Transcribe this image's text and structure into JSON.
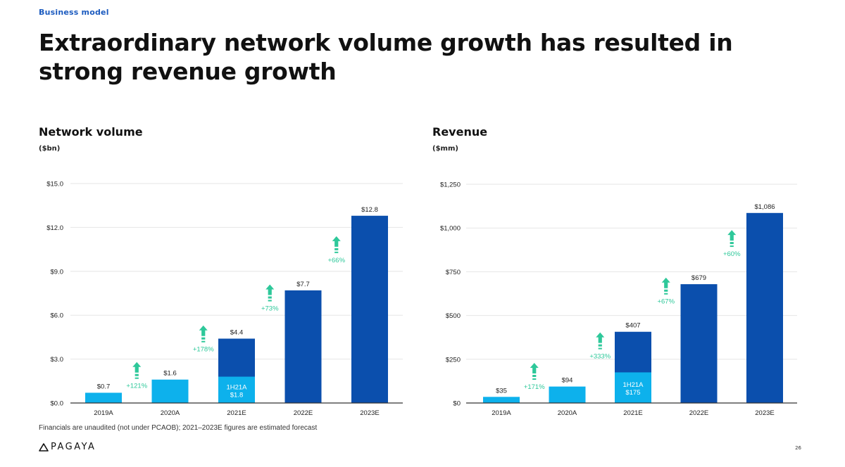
{
  "section_label": "Business model",
  "title": "Extraordinary network volume growth has resulted in strong revenue growth",
  "colors": {
    "dark_blue": "#0b4fad",
    "light_blue": "#0db1ec",
    "growth_green": "#2ec89a",
    "axis": "#333333",
    "grid": "#e6e6e6"
  },
  "chart_data": [
    {
      "id": "network-volume",
      "type": "bar",
      "title": "Network volume",
      "unit": "($bn)",
      "categories": [
        "2019A",
        "2020A",
        "2021E",
        "2022E",
        "2023E"
      ],
      "values": [
        0.7,
        1.6,
        4.4,
        7.7,
        12.8
      ],
      "value_labels": [
        "$0.7",
        "$1.6",
        "$4.4",
        "$7.7",
        "$12.8"
      ],
      "bar_colors": [
        "light",
        "light",
        "dark",
        "dark",
        "dark"
      ],
      "segment": {
        "category_index": 2,
        "value": 1.8,
        "label_line1": "1H21A",
        "label_line2": "$1.8"
      },
      "growth_labels": [
        "+121%",
        "+178%",
        "+73%",
        "+66%"
      ],
      "ylim": [
        0,
        15
      ],
      "yticks": [
        0,
        3,
        6,
        9,
        12,
        15
      ],
      "ytick_labels": [
        "$0.0",
        "$3.0",
        "$6.0",
        "$9.0",
        "$12.0",
        "$15.0"
      ]
    },
    {
      "id": "revenue",
      "type": "bar",
      "title": "Revenue",
      "unit": "($mm)",
      "categories": [
        "2019A",
        "2020A",
        "2021E",
        "2022E",
        "2023E"
      ],
      "values": [
        35,
        94,
        407,
        679,
        1086
      ],
      "value_labels": [
        "$35",
        "$94",
        "$407",
        "$679",
        "$1,086"
      ],
      "bar_colors": [
        "light",
        "light",
        "dark",
        "dark",
        "dark"
      ],
      "segment": {
        "category_index": 2,
        "value": 175,
        "label_line1": "1H21A",
        "label_line2": "$175"
      },
      "growth_labels": [
        "+171%",
        "+333%",
        "+67%",
        "+60%"
      ],
      "ylim": [
        0,
        1250
      ],
      "yticks": [
        0,
        250,
        500,
        750,
        1000,
        1250
      ],
      "ytick_labels": [
        "$0",
        "$250",
        "$500",
        "$750",
        "$1,000",
        "$1,250"
      ]
    }
  ],
  "footnote": "Financials are unaudited (not under PCAOB); 2021–2023E figures are estimated forecast",
  "logo_text": "PAGAYA",
  "page_number": "26"
}
